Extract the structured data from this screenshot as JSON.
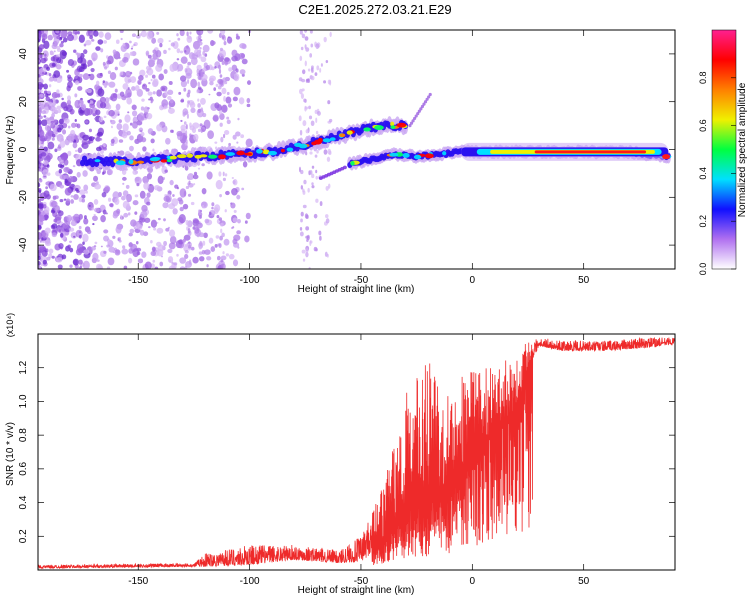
{
  "title": "C2E1.2025.272.03.21.E29",
  "chart_data": [
    {
      "type": "heatmap",
      "xlabel": "Height of straight line (km)",
      "ylabel": "Frequency (Hz)",
      "xlim": [
        -195,
        91
      ],
      "ylim": [
        -50,
        50
      ],
      "xticks": [
        -150,
        -100,
        -50,
        0,
        50
      ],
      "yticks": [
        -40,
        -20,
        0,
        20,
        40
      ],
      "colorbar": {
        "label": "Normalized spectral amplitude",
        "range": [
          0,
          1
        ],
        "ticks": [
          "0.0",
          "0.2",
          "0.4",
          "0.6",
          "0.8"
        ],
        "colors": [
          "#ffffff",
          "#b070f0",
          "#1010ff",
          "#00e0ff",
          "#00ff40",
          "#f0f000",
          "#ff8000",
          "#ff0000",
          "#ff2090"
        ]
      },
      "ridges": [
        {
          "name": "main",
          "x": [
            -175,
            -150,
            -125,
            -105,
            -90,
            -75,
            -62,
            -50,
            -40,
            -30
          ],
          "y": [
            -5,
            -5,
            -3,
            -2,
            -1,
            2,
            5,
            8,
            10,
            10
          ]
        },
        {
          "name": "lower",
          "x": [
            -55,
            -45,
            -35,
            -25,
            -15,
            -5,
            0,
            25,
            50,
            70,
            88
          ],
          "y": [
            -6,
            -4,
            -2,
            -3,
            -2,
            -1,
            -1,
            -1,
            -1,
            -1,
            -3
          ]
        }
      ]
    },
    {
      "type": "line",
      "xlabel": "Height of straight line (km)",
      "ylabel": "SNR (10 * v/v)",
      "yunit": "(x10⁴)",
      "xlim": [
        -195,
        91
      ],
      "ylim": [
        0,
        1.4
      ],
      "xticks": [
        -150,
        -100,
        -50,
        0,
        50
      ],
      "yticks": [
        0.2,
        0.4,
        0.6,
        0.8,
        1.0,
        1.2
      ],
      "color": "#ee2a2a",
      "envelope": {
        "x": [
          -195,
          -125,
          -120,
          -100,
          -80,
          -60,
          -50,
          -40,
          -35,
          -30,
          -20,
          -10,
          -5,
          0,
          10,
          20,
          25,
          30,
          40,
          60,
          80,
          91
        ],
        "base": [
          0.01,
          0.02,
          0.02,
          0.03,
          0.06,
          0.04,
          0.05,
          0.15,
          0.25,
          0.35,
          0.4,
          0.5,
          0.6,
          0.7,
          0.8,
          0.95,
          1.2,
          1.33,
          1.3,
          1.3,
          1.32,
          1.34
        ],
        "peak": [
          0.03,
          0.04,
          0.1,
          0.15,
          0.15,
          0.12,
          0.2,
          0.5,
          0.75,
          1.05,
          1.25,
          1.1,
          1.15,
          1.2,
          1.2,
          1.3,
          1.36,
          1.38,
          1.36,
          1.36,
          1.38,
          1.38
        ]
      }
    }
  ]
}
